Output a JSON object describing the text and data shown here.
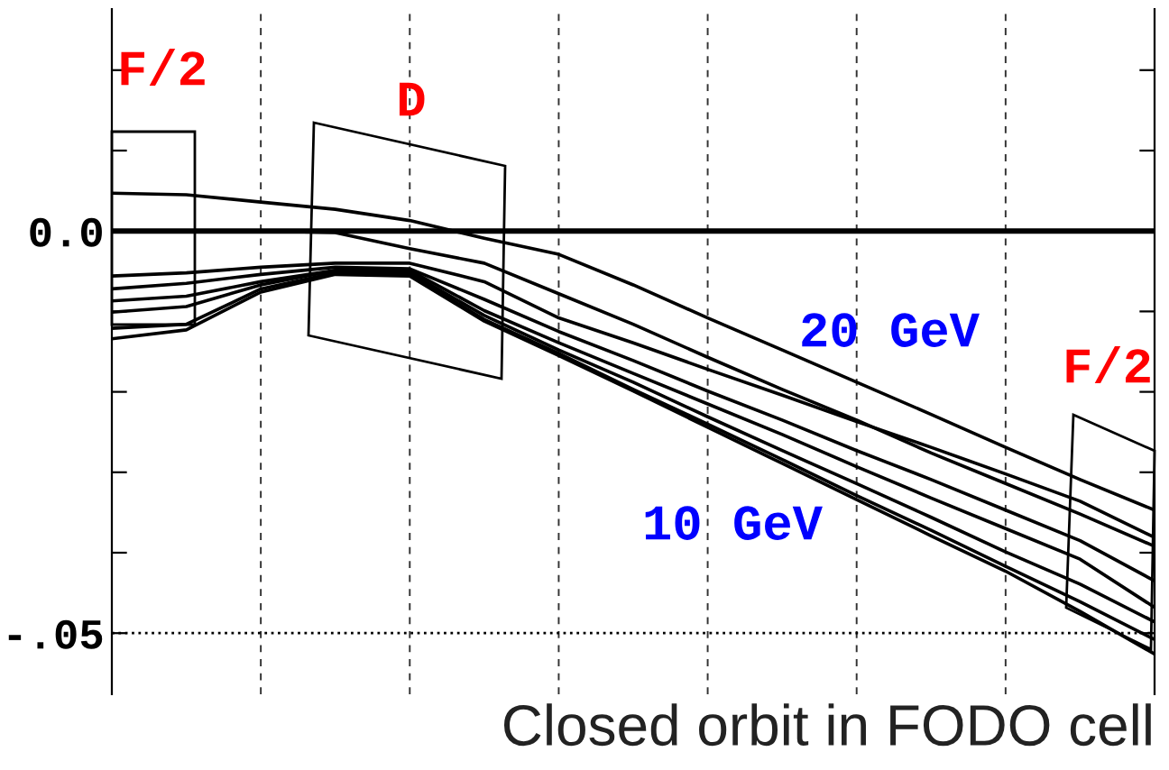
{
  "chart_data": {
    "type": "line",
    "categories": [
      null,
      null,
      null,
      null,
      null,
      null,
      null,
      null,
      null,
      null,
      null,
      null,
      null,
      null,
      null
    ],
    "series": [
      {
        "color": "#000000",
        "values": [
          0.0047,
          0.0045,
          0.0036,
          0.0027,
          0.0013,
          -0.0009,
          -0.0029,
          -0.0067,
          -0.0108,
          -0.0148,
          -0.0188,
          -0.0228,
          -0.0269,
          -0.0309,
          -0.0347
        ]
      },
      {
        "color": "#000000",
        "values": [
          0.0,
          0.0,
          0.0,
          -0.0002,
          -0.0022,
          -0.004,
          -0.0078,
          -0.0116,
          -0.0157,
          -0.0197,
          -0.0235,
          -0.0276,
          -0.0314,
          -0.0352,
          -0.0392
        ]
      },
      {
        "color": "#000000",
        "values": [
          -0.0056,
          -0.0052,
          -0.0045,
          -0.004,
          -0.004,
          -0.0063,
          -0.0108,
          -0.0139,
          -0.0172,
          -0.0204,
          -0.0237,
          -0.0269,
          -0.0302,
          -0.0336,
          -0.0381
        ]
      },
      {
        "color": "#000000",
        "values": [
          -0.0072,
          -0.0065,
          -0.0054,
          -0.0045,
          -0.0047,
          -0.0085,
          -0.0125,
          -0.0161,
          -0.0199,
          -0.0235,
          -0.0273,
          -0.0309,
          -0.0347,
          -0.0385,
          -0.0435
        ]
      },
      {
        "color": "#000000",
        "values": [
          -0.0087,
          -0.0081,
          -0.0063,
          -0.0049,
          -0.0049,
          -0.0099,
          -0.0139,
          -0.0177,
          -0.0215,
          -0.0253,
          -0.0293,
          -0.0332,
          -0.037,
          -0.0408,
          -0.0468
        ]
      },
      {
        "color": "#000000",
        "values": [
          -0.0101,
          -0.0094,
          -0.0067,
          -0.0049,
          -0.0052,
          -0.0105,
          -0.0148,
          -0.0188,
          -0.0231,
          -0.0273,
          -0.0314,
          -0.0356,
          -0.0399,
          -0.0439,
          -0.0486
        ]
      },
      {
        "color": "#000000",
        "values": [
          -0.0121,
          -0.0116,
          -0.0072,
          -0.0052,
          -0.0054,
          -0.011,
          -0.0152,
          -0.0197,
          -0.024,
          -0.0284,
          -0.0329,
          -0.0372,
          -0.0417,
          -0.0461,
          -0.0508
        ]
      },
      {
        "color": "#000000",
        "values": [
          -0.0134,
          -0.0123,
          -0.0076,
          -0.0054,
          -0.0056,
          -0.0112,
          -0.0155,
          -0.0199,
          -0.0244,
          -0.0289,
          -0.0334,
          -0.0379,
          -0.0423,
          -0.0473,
          -0.0526
        ]
      }
    ],
    "ylim": [
      -0.0576,
      0.0276
    ],
    "yticks": [
      {
        "value": 0.02,
        "label": null
      },
      {
        "value": 0.01,
        "label": null
      },
      {
        "value": 0.0,
        "label": "0.0"
      },
      {
        "value": -0.01,
        "label": null
      },
      {
        "value": -0.02,
        "label": null
      },
      {
        "value": -0.03,
        "label": null
      },
      {
        "value": -0.04,
        "label": null
      },
      {
        "value": -0.05,
        "label": "-.05"
      }
    ],
    "tick_labels": "y",
    "ref_lines": [
      {
        "axis": "y",
        "value": 0.0,
        "color": "#000000",
        "line_style": "solid"
      },
      {
        "axis": "y",
        "value": -0.05,
        "color": "#000000",
        "line_style": "dotted"
      }
    ],
    "grid": "x",
    "marker": "none",
    "line_style": "solid",
    "legend": false,
    "annotations": [
      "F/2",
      "D",
      "F/2",
      "20 GeV",
      "10 GeV",
      "Closed orbit in FODO cell"
    ]
  }
}
